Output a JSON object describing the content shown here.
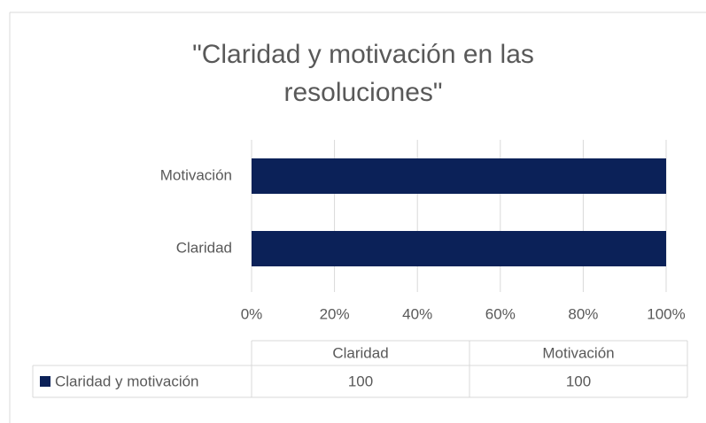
{
  "chart_data": {
    "type": "bar",
    "orientation": "horizontal",
    "title": "\"Claridad y motivación en las resoluciones\"",
    "categories": [
      "Claridad",
      "Motivación"
    ],
    "series": [
      {
        "name": "Claridad y motivación",
        "color": "#0b2158",
        "values": [
          100,
          100
        ]
      }
    ],
    "xlim": [
      0,
      100
    ],
    "xticks": [
      {
        "value": 0,
        "label": "0%"
      },
      {
        "value": 20,
        "label": "20%"
      },
      {
        "value": 40,
        "label": "40%"
      },
      {
        "value": 60,
        "label": "60%"
      },
      {
        "value": 80,
        "label": "80%"
      },
      {
        "value": 100,
        "label": "100%"
      }
    ],
    "grid": true,
    "data_table": true
  }
}
